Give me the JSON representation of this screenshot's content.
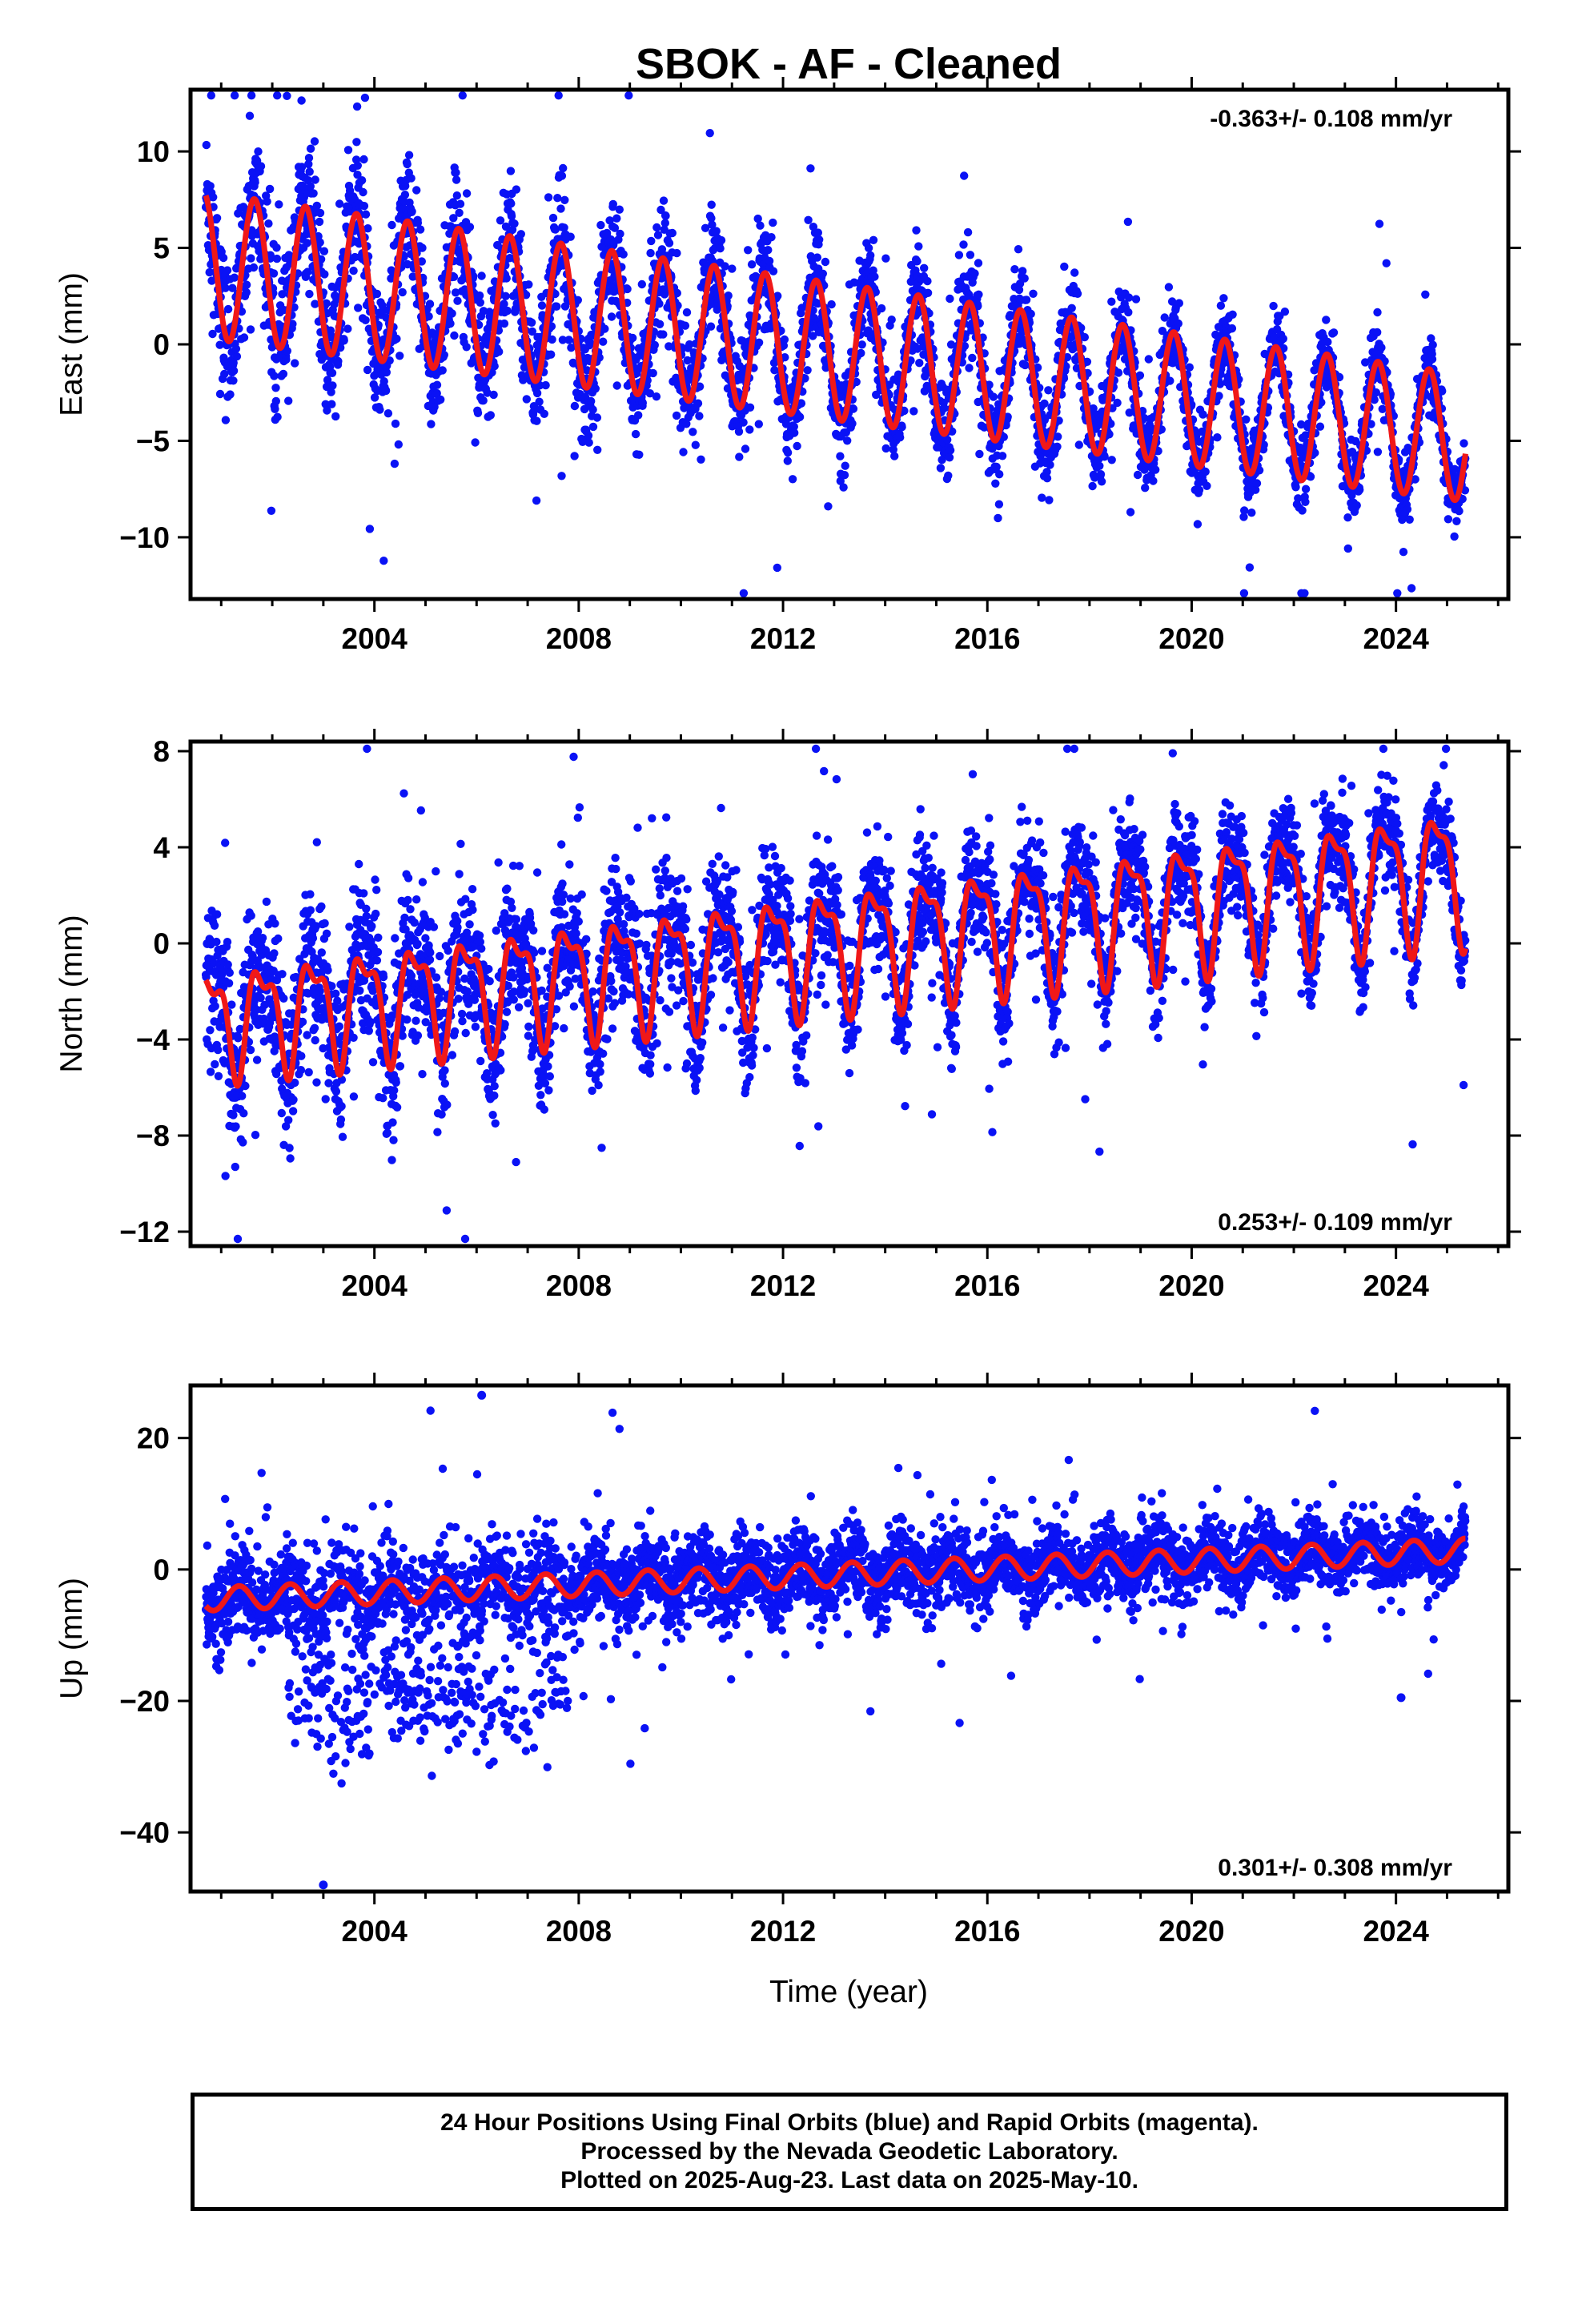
{
  "chart_data": {
    "title": "SBOK  - AF - Cleaned",
    "type": "scatter",
    "xlabel": "Time (year)",
    "xlim": [
      2000.4,
      2026.2
    ],
    "xticks": [
      2004,
      2008,
      2012,
      2016,
      2020,
      2024
    ],
    "grid": false,
    "colors": {
      "points": "#0a12f5",
      "model": "#f01818"
    },
    "panels": [
      {
        "id": "east",
        "ylabel": "East (mm)",
        "ylim": [
          -13.2,
          13.2
        ],
        "yticks": [
          -10,
          -5,
          0,
          5,
          10
        ],
        "rate": "-0.363+/- 0.108 mm/yr",
        "rate_position": "top-right",
        "start": 2000.7,
        "end": 2025.36,
        "model": {
          "offset0": 4.1,
          "trend_per_yr": -0.363,
          "annual_amp_start": 3.8,
          "annual_amp_end": 3.3,
          "phase": 0.4,
          "secondary_amp": 0.0
        },
        "scatter": {
          "sd_start": 2.6,
          "sd_end": 1.1,
          "outlier_frac": 0.04
        }
      },
      {
        "id": "north",
        "ylabel": "North (mm)",
        "ylim": [
          -12.6,
          8.4
        ],
        "yticks": [
          -12,
          -8,
          -4,
          0,
          4,
          8
        ],
        "rate": "0.253+/- 0.109 mm/yr",
        "rate_position": "bottom-right",
        "start": 2000.7,
        "end": 2025.36,
        "model": {
          "offset0": -3.2,
          "trend_per_yr": 0.253,
          "annual_amp_start": 2.0,
          "annual_amp_end": 2.6,
          "phase": 0.55,
          "secondary_amp": 0.9
        },
        "scatter": {
          "sd_start": 2.2,
          "sd_end": 1.2,
          "outlier_frac": 0.04
        }
      },
      {
        "id": "up",
        "ylabel": "Up (mm)",
        "ylim": [
          -49,
          28
        ],
        "yticks": [
          -40,
          -20,
          0,
          20
        ],
        "rate": "0.301+/- 0.308 mm/yr",
        "rate_position": "bottom-right",
        "start": 2000.7,
        "end": 2025.36,
        "model": {
          "offset0": -4.5,
          "trend_per_yr": 0.301,
          "annual_amp_start": 1.8,
          "annual_amp_end": 1.8,
          "phase": 0.1,
          "secondary_amp": 0.0
        },
        "scatter": {
          "sd_start": 5.0,
          "sd_end": 3.3,
          "outlier_frac": 0.03,
          "anomaly": {
            "from": 2002.3,
            "to": 2007.8,
            "center": -19,
            "spread": 6
          }
        },
        "extremes": [
          {
            "x": 2006.1,
            "y": 26.5
          },
          {
            "x": 2003.0,
            "y": -48.0
          },
          {
            "x": 2024.1,
            "y": -19.5
          }
        ]
      }
    ]
  },
  "footer": {
    "line1": "24 Hour Positions Using Final Orbits (blue) and Rapid Orbits (magenta).",
    "line2": "Processed by the Nevada Geodetic Laboratory.",
    "line3": "Plotted on 2025-Aug-23. Last data on 2025-May-10."
  }
}
